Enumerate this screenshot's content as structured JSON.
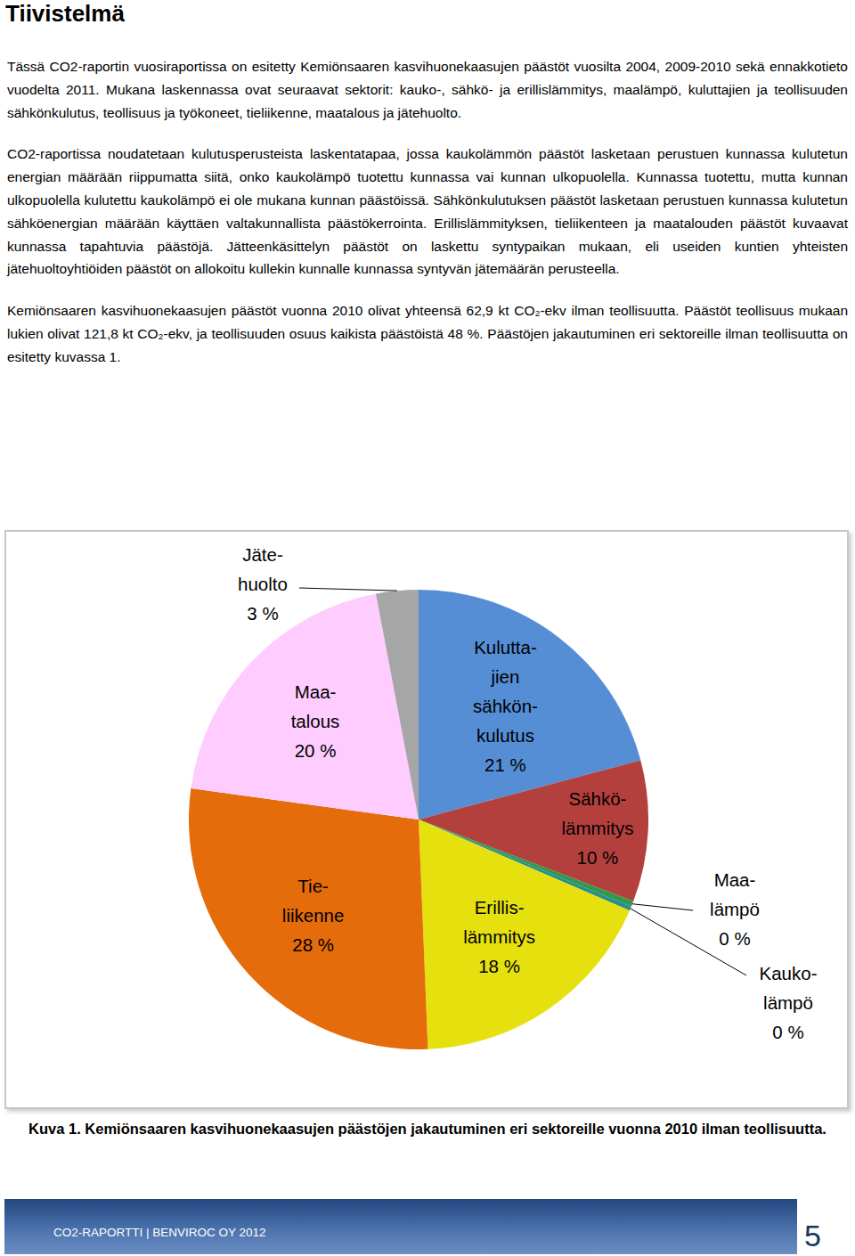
{
  "title": "Tiivistelmä",
  "paragraphs": [
    "Tässä CO2-raportin vuosiraportissa on esitetty Kemiönsaaren kasvihuonekaasujen päästöt vuosilta 2004, 2009-2010 sekä ennakkotieto vuodelta 2011. Mukana laskennassa ovat seuraavat sektorit: kauko-, sähkö- ja erillislämmitys, maalämpö, kuluttajien ja teollisuuden sähkönkulutus, teollisuus ja työkoneet, tieliikenne, maatalous ja jätehuolto.",
    "CO2-raportissa noudatetaan kulutusperusteista laskentatapaa, jossa kaukolämmön päästöt lasketaan perustuen kunnassa kulutetun energian määrään riippumatta siitä, onko kaukolämpö tuotettu kunnassa vai kunnan ulkopuolella. Kunnassa tuotettu, mutta kunnan ulkopuolella kulutettu kaukolämpö ei ole mukana kunnan päästöissä. Sähkönkulutuksen päästöt lasketaan perustuen kunnassa kulutetun sähköenergian määrään käyttäen valtakunnallista päästökerrointa. Erillislämmityksen, tieliikenteen ja maatalouden päästöt kuvaavat kunnassa tapahtuvia päästöjä. Jätteenkäsittelyn päästöt on laskettu syntypaikan mukaan, eli useiden kuntien yhteisten jätehuoltoyhtiöiden päästöt on allokoitu kullekin kunnalle kunnassa syntyvän jätemäärän perusteella.",
    "Kemiönsaaren kasvihuonekaasujen päästöt vuonna 2010 olivat yhteensä 62,9 kt CO₂-ekv ilman teollisuutta. Päästöt teollisuus mukaan lukien olivat 121,8 kt CO₂-ekv, ja teollisuuden osuus kaikista päästöistä 48 %. Päästöjen jakautuminen eri sektoreille ilman teollisuutta on esitetty kuvassa 1."
  ],
  "chart_data": {
    "type": "pie",
    "categories": [
      "Kulutta-\njien\nsähkön-\nkulutus",
      "Sähkö-\nlämmitys",
      "Maa-\nlämpö",
      "Kauko-\nlämpö",
      "Erillis-\nlämmitys",
      "Tie-\nliikenne",
      "Maa-\ntalous",
      "Jäte-\nhuolto"
    ],
    "values": [
      21,
      10,
      0.4,
      0.3,
      18,
      28,
      20,
      3
    ],
    "value_labels": [
      "21 %",
      "10 %",
      "0 %",
      "0 %",
      "18 %",
      "28 %",
      "20 %",
      "3 %"
    ],
    "colors": [
      "#558ed5",
      "#b3403d",
      "#2f9a4e",
      "#2b8c8c",
      "#e6e00f",
      "#e46c0a",
      "#ffccff",
      "#a6a6a6"
    ],
    "data_labels": true
  },
  "caption": "Kuva 1. Kemiönsaaren kasvihuonekaasujen päästöjen jakautuminen eri sektoreille vuonna 2010 ilman teollisuutta.",
  "footer": {
    "text": "CO2-RAPORTTI | BENVIROC OY 2012",
    "page": 5
  }
}
